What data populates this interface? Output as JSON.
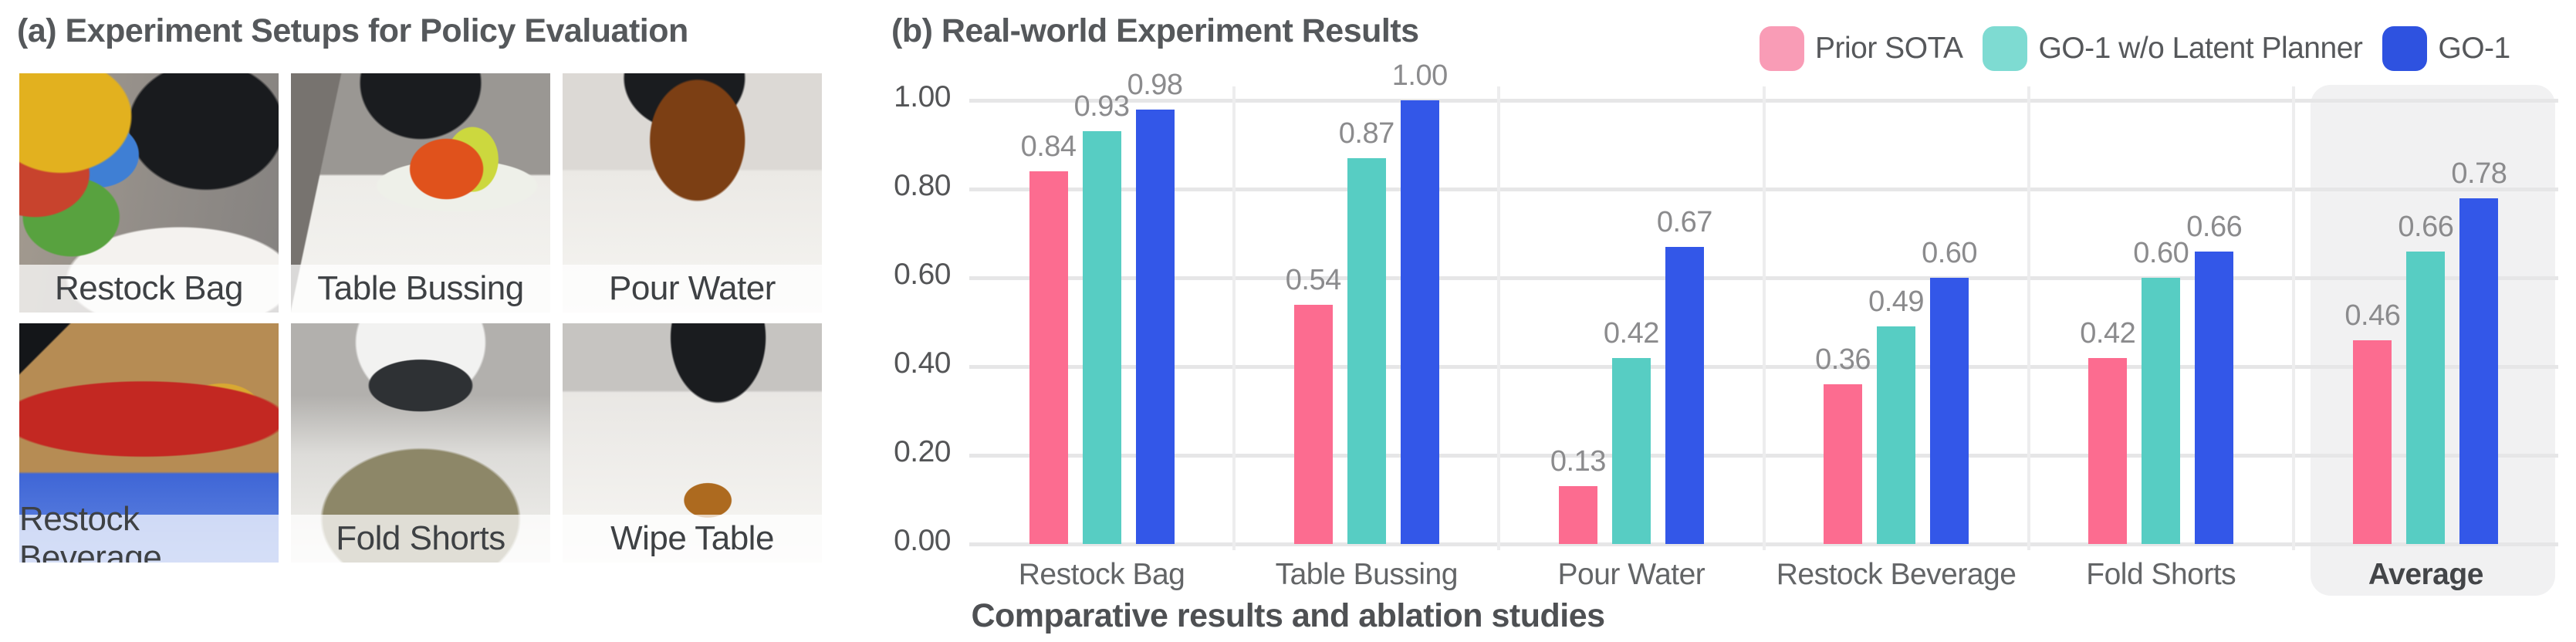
{
  "panel_a": {
    "title": "(a) Experiment Setups for Policy Evaluation",
    "setups": [
      {
        "label": "Restock Bag"
      },
      {
        "label": "Table Bussing"
      },
      {
        "label": "Pour Water"
      },
      {
        "label": "Restock Beverage"
      },
      {
        "label": "Fold Shorts"
      },
      {
        "label": "Wipe Table"
      }
    ]
  },
  "panel_b": {
    "title": "(b) Real-world Experiment Results",
    "legend": [
      {
        "label": "Prior SOTA",
        "swatch_color": "#f99cb6"
      },
      {
        "label": "GO-1 w/o Latent Planner",
        "swatch_color": "#7edbd2"
      },
      {
        "label": "GO-1",
        "swatch_color": "#2e52e0"
      }
    ]
  },
  "caption": "Comparative results and ablation studies",
  "chart_data": {
    "type": "bar",
    "title": "(b) Real-world Experiment Results",
    "categories": [
      "Restock Bag",
      "Table Bussing",
      "Pour Water",
      "Restock Beverage",
      "Fold Shorts",
      "Average"
    ],
    "series": [
      {
        "name": "Prior SOTA",
        "color": "#fc6c90",
        "values": [
          0.84,
          0.54,
          0.13,
          0.36,
          0.42,
          0.46
        ]
      },
      {
        "name": "GO-1 w/o Latent Planner",
        "color": "#57cdc3",
        "values": [
          0.93,
          0.87,
          0.42,
          0.49,
          0.6,
          0.66
        ]
      },
      {
        "name": "GO-1",
        "color": "#3357e8",
        "values": [
          0.98,
          1.0,
          0.67,
          0.6,
          0.66,
          0.78
        ]
      }
    ],
    "y_ticks": [
      "1.00",
      "0.80",
      "0.60",
      "0.40",
      "0.20",
      "0.00"
    ],
    "ylim": [
      0,
      1.0
    ],
    "grid": true,
    "legend_position": "top-right",
    "highlight_category": "Average",
    "value_labels": true,
    "value_label_format": "0.00"
  }
}
